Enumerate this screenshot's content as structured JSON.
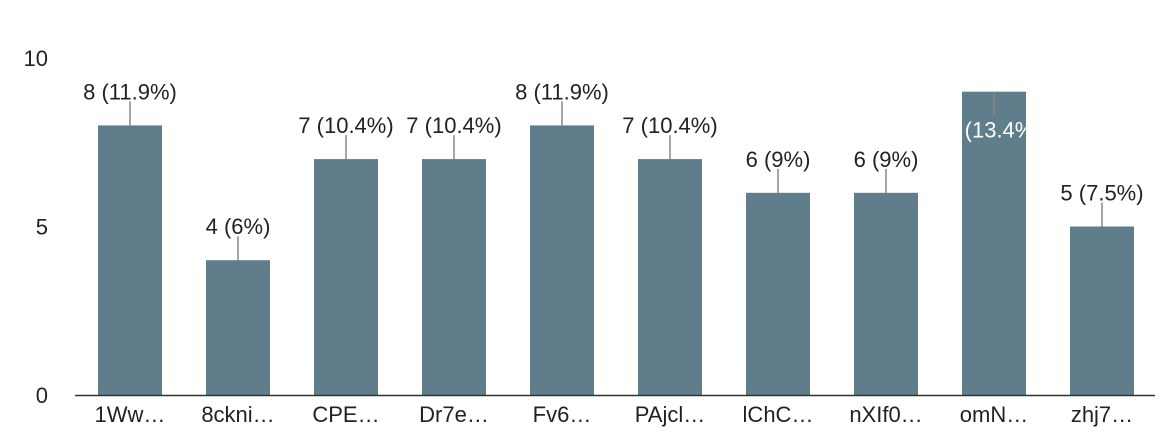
{
  "chart_data": {
    "type": "bar",
    "categories": [
      "1Ww…",
      "8ckni…",
      "CPE…",
      "Dr7e…",
      "Fv6…",
      "PAjcl…",
      "lChC…",
      "nXIf0…",
      "omN…",
      "zhj7…"
    ],
    "values": [
      8,
      4,
      7,
      7,
      8,
      7,
      6,
      6,
      9,
      5
    ],
    "data_labels": [
      "8 (11.9%)",
      "4 (6%)",
      "7 (10.4%)",
      "7 (10.4%)",
      "8 (11.9%)",
      "7 (10.4%)",
      "6 (9%)",
      "6 (9%)",
      "9 (13.4%)",
      "5 (7.5%)"
    ],
    "yticks": [
      "0",
      "5",
      "10"
    ],
    "ylim": [
      0,
      10
    ],
    "title": "",
    "xlabel": "",
    "ylabel": "",
    "grid": false,
    "legend": "none",
    "bar_color": "#607d8b",
    "axis_color": "#333333",
    "text_color": "#222222"
  }
}
